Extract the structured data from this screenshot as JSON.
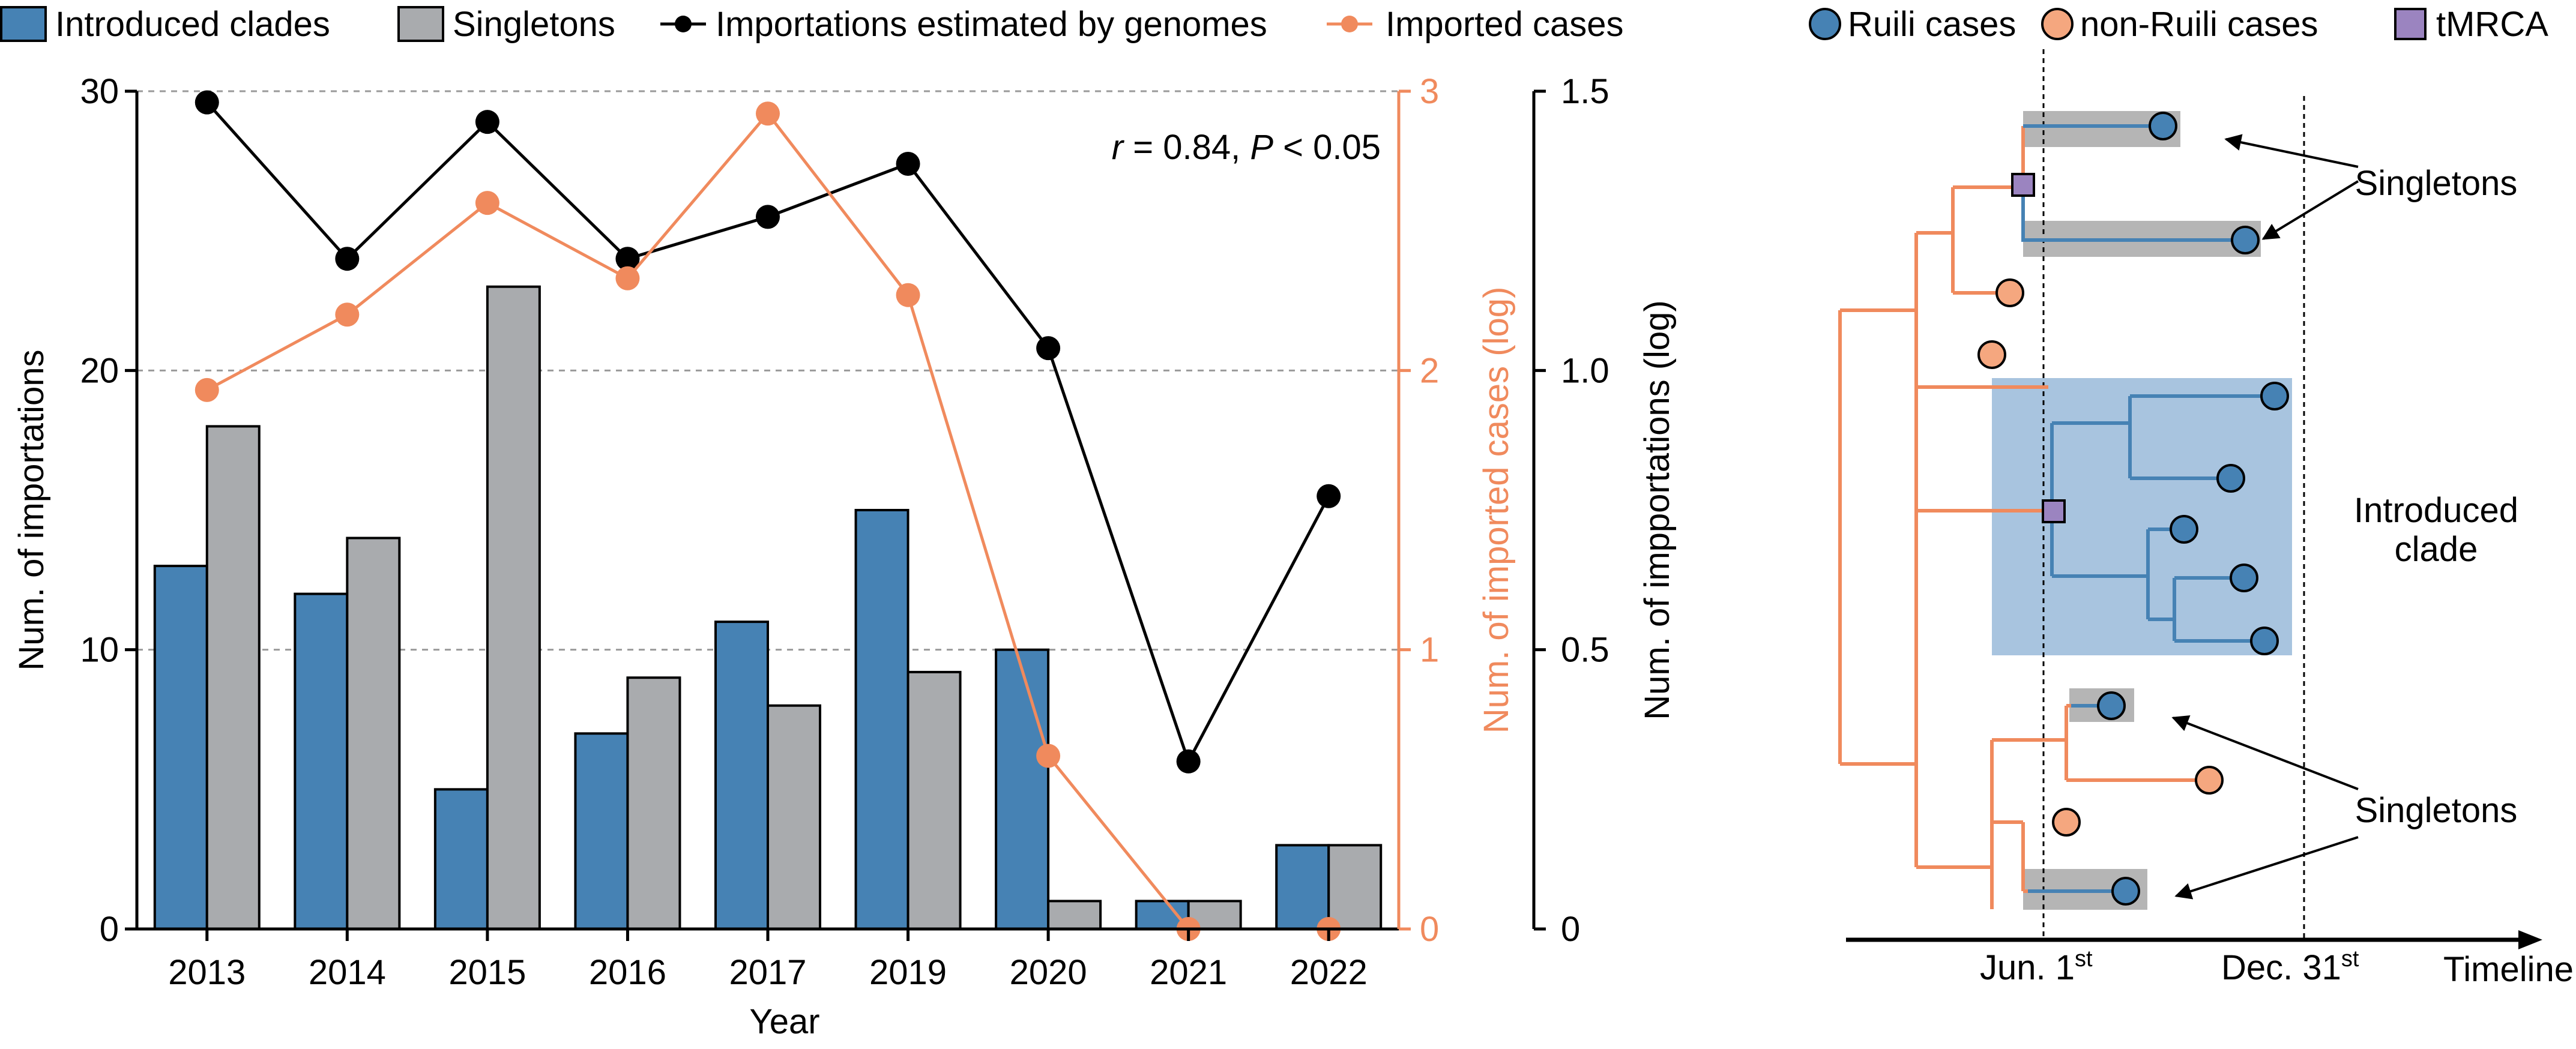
{
  "chart_data": [
    {
      "type": "bar",
      "categories": [
        "2013",
        "2014",
        "2015",
        "2016",
        "2017",
        "2019",
        "2020",
        "2021",
        "2022"
      ],
      "xlabel": "Year",
      "ylabel": "Num. of importations",
      "ylim": [
        0,
        30
      ],
      "yticks": [
        "0",
        "10",
        "20",
        "30"
      ],
      "grid": true,
      "series": [
        {
          "name": "Introduced clades",
          "type": "bar",
          "axis": "left",
          "color": "#4682b4",
          "values": [
            13,
            12,
            5,
            7,
            11,
            15,
            10,
            1,
            3
          ]
        },
        {
          "name": "Singletons",
          "type": "bar",
          "axis": "left",
          "color": "#a9abae",
          "values": [
            18,
            14,
            23,
            9,
            8,
            9.2,
            1,
            1,
            3
          ]
        },
        {
          "name": "Importations estimated by genomes",
          "type": "line",
          "axis": "right2",
          "color": "#000000",
          "values": [
            1.48,
            1.2,
            1.445,
            1.2,
            1.275,
            1.37,
            1.04,
            0.3,
            0.775
          ]
        },
        {
          "name": "Imported cases",
          "type": "line",
          "axis": "right1",
          "color": "#f08a5d",
          "values": [
            1.93,
            2.2,
            2.6,
            2.33,
            2.92,
            2.27,
            0.62,
            0,
            0
          ]
        }
      ],
      "y2label": "Num. of imported cases (log)",
      "y2lim": [
        0,
        3
      ],
      "y2ticks": [
        "0",
        "1",
        "2",
        "3"
      ],
      "y3label": "Num. of impportations (log)",
      "y3lim": [
        0,
        1.5
      ],
      "y3ticks": [
        "0",
        "0.5",
        "1.0",
        "1.5"
      ],
      "annotation": {
        "r_symbol": "r",
        "r_text": " = 0.84, ",
        "p_symbol": "P",
        "p_text": " < 0.05"
      },
      "legend_placement": "top"
    },
    {
      "type": "diagram",
      "legend": [
        "Ruili cases",
        "non-Ruili cases",
        "tMRCA"
      ],
      "labels": {
        "singletons_top": "Singletons",
        "introduced": [
          "Introduced",
          "clade"
        ],
        "singletons_bottom": "Singletons",
        "timeline": "Timeline",
        "jun_main": "Jun. 1",
        "jun_sup": "st",
        "dec_main": "Dec. 31",
        "dec_sup": "st"
      },
      "colors": {
        "ruili": "#4682b4",
        "non_ruili": "#f5a77f",
        "tmrca": "#9b84c0",
        "clade_box": "#a8c4df",
        "singleton_box": "#b5b5b5",
        "tree_orange": "#f08a5d"
      }
    }
  ]
}
